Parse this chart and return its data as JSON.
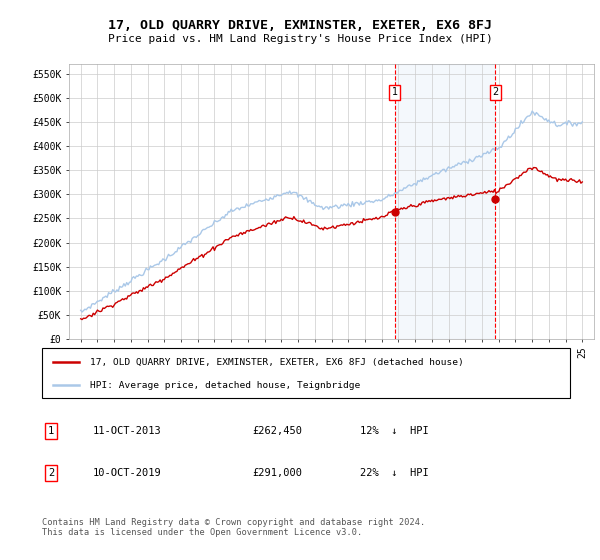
{
  "title": "17, OLD QUARRY DRIVE, EXMINSTER, EXETER, EX6 8FJ",
  "subtitle": "Price paid vs. HM Land Registry's House Price Index (HPI)",
  "ylabel_ticks": [
    "£0",
    "£50K",
    "£100K",
    "£150K",
    "£200K",
    "£250K",
    "£300K",
    "£350K",
    "£400K",
    "£450K",
    "£500K",
    "£550K"
  ],
  "ytick_values": [
    0,
    50000,
    100000,
    150000,
    200000,
    250000,
    300000,
    350000,
    400000,
    450000,
    500000,
    550000
  ],
  "hpi_color": "#aac8e8",
  "price_color": "#cc0000",
  "marker1_date": 2013.79,
  "marker2_date": 2019.79,
  "marker1_price": 262450,
  "marker2_price": 291000,
  "legend_label1": "17, OLD QUARRY DRIVE, EXMINSTER, EXETER, EX6 8FJ (detached house)",
  "legend_label2": "HPI: Average price, detached house, Teignbridge",
  "footer": "Contains HM Land Registry data © Crown copyright and database right 2024.\nThis data is licensed under the Open Government Licence v3.0.",
  "grid_color": "#cccccc",
  "shade_color": "#ddeeff"
}
